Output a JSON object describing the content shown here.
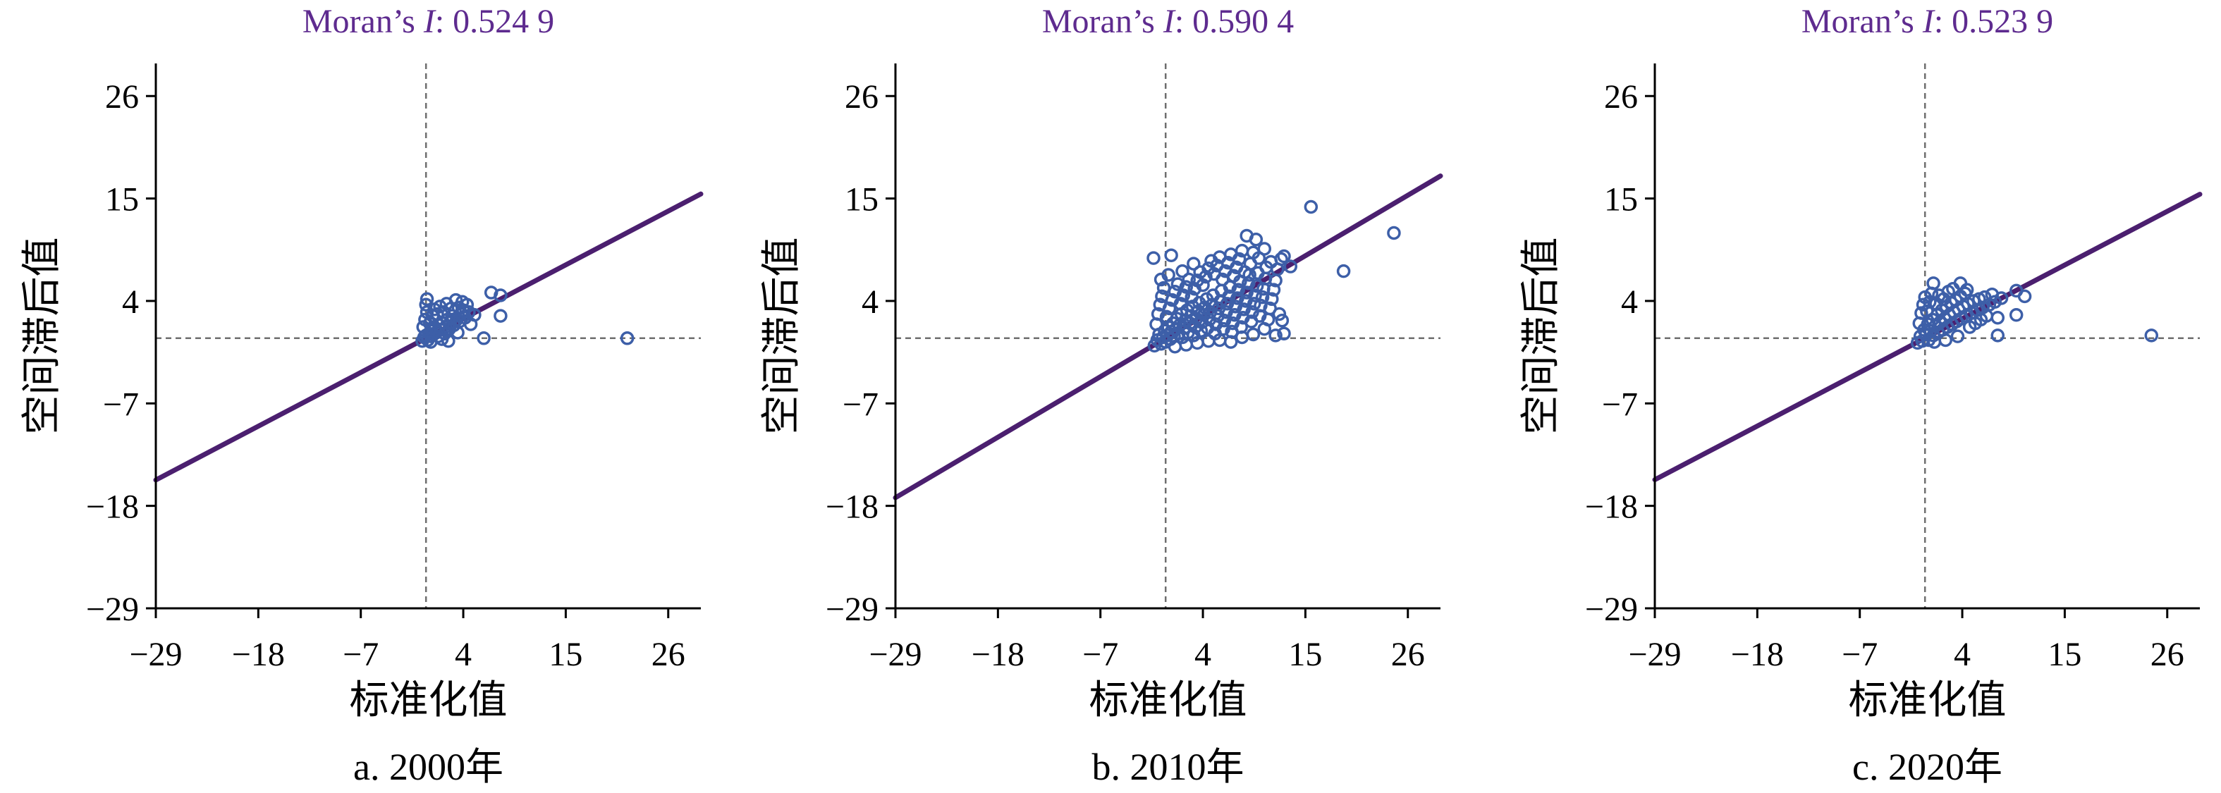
{
  "colors": {
    "title": "#5e2b8f",
    "regression_line": "#4b1f6f",
    "points": "#3d5fa8",
    "reference_lines": "#6e6e6e",
    "axes": "#000000",
    "background": "#ffffff"
  },
  "chart_data": [
    {
      "type": "scatter",
      "title_parts": [
        {
          "text": "Moran’s ",
          "italic": false
        },
        {
          "text": "I",
          "italic": true
        },
        {
          "text": ": 0.524 9",
          "italic": false
        }
      ],
      "caption": "a. 2000年",
      "xlabel": "标准化值",
      "ylabel": "空间滞后值",
      "xlim": [
        -29,
        29.5
      ],
      "ylim": [
        -29,
        29.5
      ],
      "xticks": [
        -29,
        -18,
        -7,
        4,
        15,
        26
      ],
      "xtick_labels": [
        "−29",
        "−18",
        "−7",
        "4",
        "15",
        "26"
      ],
      "yticks": [
        -29,
        -18,
        -7,
        4,
        15,
        26
      ],
      "ytick_labels": [
        "−29",
        "−18",
        "−7",
        "4",
        "15",
        "26"
      ],
      "grid": false,
      "reference_lines": {
        "x": 0,
        "y": 0
      },
      "regression_slope": 0.5249,
      "points": [
        [
          -0.4,
          -0.3
        ],
        [
          -0.2,
          0.1
        ],
        [
          0.0,
          0.3
        ],
        [
          0.2,
          -0.2
        ],
        [
          0.3,
          0.5
        ],
        [
          0.5,
          0.2
        ],
        [
          0.6,
          0.8
        ],
        [
          0.8,
          0.4
        ],
        [
          1.0,
          1.1
        ],
        [
          1.1,
          0.6
        ],
        [
          1.3,
          0.2
        ],
        [
          1.4,
          1.4
        ],
        [
          1.6,
          0.9
        ],
        [
          1.8,
          1.6
        ],
        [
          2.0,
          0.5
        ],
        [
          2.1,
          1.2
        ],
        [
          2.3,
          2.0
        ],
        [
          2.5,
          1.0
        ],
        [
          2.6,
          1.7
        ],
        [
          2.8,
          2.4
        ],
        [
          3.0,
          1.4
        ],
        [
          3.1,
          2.9
        ],
        [
          3.3,
          2.0
        ],
        [
          3.5,
          3.3
        ],
        [
          3.6,
          1.8
        ],
        [
          3.8,
          2.6
        ],
        [
          4.0,
          3.0
        ],
        [
          4.2,
          2.2
        ],
        [
          4.4,
          3.6
        ],
        [
          4.6,
          2.8
        ],
        [
          -0.3,
          1.2
        ],
        [
          -0.1,
          2.0
        ],
        [
          0.1,
          2.8
        ],
        [
          0.0,
          3.6
        ],
        [
          0.1,
          4.2
        ],
        [
          0.4,
          1.6
        ],
        [
          0.7,
          2.4
        ],
        [
          0.9,
          3.1
        ],
        [
          1.2,
          2.6
        ],
        [
          1.5,
          3.4
        ],
        [
          1.9,
          2.8
        ],
        [
          2.2,
          3.7
        ],
        [
          2.7,
          3.2
        ],
        [
          3.2,
          4.1
        ],
        [
          3.9,
          3.9
        ],
        [
          4.8,
          1.5
        ],
        [
          5.2,
          2.5
        ],
        [
          0.5,
          -0.4
        ],
        [
          1.7,
          -0.1
        ],
        [
          2.4,
          -0.3
        ],
        [
          3.4,
          0.6
        ],
        [
          6.2,
          0.0
        ],
        [
          7.0,
          4.9
        ],
        [
          8.0,
          4.6
        ],
        [
          8.0,
          2.4
        ],
        [
          21.6,
          0.0
        ]
      ]
    },
    {
      "type": "scatter",
      "title_parts": [
        {
          "text": "Moran’s ",
          "italic": false
        },
        {
          "text": "I",
          "italic": true
        },
        {
          "text": ": 0.590 4",
          "italic": false
        }
      ],
      "caption": "b. 2010年",
      "xlabel": "标准化值",
      "ylabel": "空间滞后值",
      "xlim": [
        -29,
        29.5
      ],
      "ylim": [
        -29,
        29.5
      ],
      "xticks": [
        -29,
        -18,
        -7,
        4,
        15,
        26
      ],
      "xtick_labels": [
        "−29",
        "−18",
        "−7",
        "4",
        "15",
        "26"
      ],
      "yticks": [
        -29,
        -18,
        -7,
        4,
        15,
        26
      ],
      "ytick_labels": [
        "−29",
        "−18",
        "−7",
        "4",
        "15",
        "26"
      ],
      "grid": false,
      "reference_lines": {
        "x": 0,
        "y": 0
      },
      "regression_slope": 0.5904,
      "points": [
        [
          -1.2,
          -0.8
        ],
        [
          -0.9,
          -0.2
        ],
        [
          -0.7,
          0.4
        ],
        [
          -0.5,
          -0.6
        ],
        [
          -0.3,
          0.1
        ],
        [
          -0.1,
          0.8
        ],
        [
          0.0,
          -0.4
        ],
        [
          0.2,
          0.3
        ],
        [
          0.3,
          1.2
        ],
        [
          0.5,
          -0.1
        ],
        [
          0.6,
          0.7
        ],
        [
          0.8,
          1.6
        ],
        [
          0.9,
          0.2
        ],
        [
          1.1,
          1.0
        ],
        [
          1.2,
          2.1
        ],
        [
          1.4,
          0.5
        ],
        [
          1.5,
          1.4
        ],
        [
          1.7,
          2.6
        ],
        [
          1.8,
          0.1
        ],
        [
          2.0,
          1.1
        ],
        [
          2.1,
          1.9
        ],
        [
          2.3,
          3.0
        ],
        [
          2.4,
          0.6
        ],
        [
          2.6,
          1.6
        ],
        [
          2.7,
          2.4
        ],
        [
          2.9,
          3.4
        ],
        [
          3.0,
          0.3
        ],
        [
          3.2,
          1.2
        ],
        [
          3.3,
          2.1
        ],
        [
          3.5,
          2.9
        ],
        [
          3.6,
          3.8
        ],
        [
          3.8,
          0.8
        ],
        [
          3.9,
          1.7
        ],
        [
          4.1,
          2.5
        ],
        [
          4.2,
          3.3
        ],
        [
          4.4,
          4.2
        ],
        [
          4.5,
          1.1
        ],
        [
          4.7,
          2.0
        ],
        [
          4.8,
          2.8
        ],
        [
          5.0,
          3.6
        ],
        [
          5.1,
          4.6
        ],
        [
          5.3,
          0.5
        ],
        [
          5.4,
          1.5
        ],
        [
          5.6,
          2.4
        ],
        [
          5.7,
          3.2
        ],
        [
          5.9,
          4.0
        ],
        [
          6.0,
          5.1
        ],
        [
          6.2,
          1.0
        ],
        [
          6.3,
          1.9
        ],
        [
          6.5,
          2.8
        ],
        [
          6.6,
          3.7
        ],
        [
          6.8,
          4.5
        ],
        [
          6.9,
          5.5
        ],
        [
          7.1,
          0.7
        ],
        [
          7.2,
          1.6
        ],
        [
          7.4,
          2.5
        ],
        [
          7.5,
          3.4
        ],
        [
          7.7,
          4.3
        ],
        [
          7.8,
          5.2
        ],
        [
          8.0,
          6.1
        ],
        [
          8.1,
          1.2
        ],
        [
          8.3,
          2.2
        ],
        [
          8.4,
          3.1
        ],
        [
          8.6,
          4.0
        ],
        [
          8.7,
          4.9
        ],
        [
          8.9,
          5.9
        ],
        [
          9.0,
          6.8
        ],
        [
          9.2,
          1.8
        ],
        [
          9.3,
          2.8
        ],
        [
          9.5,
          3.7
        ],
        [
          9.6,
          4.6
        ],
        [
          9.8,
          5.6
        ],
        [
          9.9,
          7.0
        ],
        [
          10.1,
          2.4
        ],
        [
          10.2,
          3.5
        ],
        [
          10.4,
          4.4
        ],
        [
          10.5,
          5.3
        ],
        [
          10.7,
          6.4
        ],
        [
          10.8,
          7.6
        ],
        [
          11.0,
          2.0
        ],
        [
          11.2,
          3.2
        ],
        [
          11.4,
          4.2
        ],
        [
          11.6,
          5.2
        ],
        [
          11.8,
          6.2
        ],
        [
          12.0,
          7.4
        ],
        [
          12.2,
          2.6
        ],
        [
          12.5,
          1.9
        ],
        [
          12.7,
          0.5
        ],
        [
          12.4,
          8.5
        ],
        [
          13.4,
          7.7
        ],
        [
          12.7,
          8.8
        ],
        [
          -1.0,
          1.5
        ],
        [
          -0.8,
          2.6
        ],
        [
          -0.6,
          3.6
        ],
        [
          -0.4,
          4.5
        ],
        [
          -0.2,
          5.4
        ],
        [
          -0.5,
          6.3
        ],
        [
          -1.3,
          8.6
        ],
        [
          0.6,
          8.9
        ],
        [
          0.1,
          2.3
        ],
        [
          0.4,
          3.2
        ],
        [
          0.7,
          4.1
        ],
        [
          1.0,
          5.0
        ],
        [
          1.3,
          5.8
        ],
        [
          0.3,
          6.8
        ],
        [
          1.6,
          3.7
        ],
        [
          1.9,
          4.6
        ],
        [
          2.2,
          5.5
        ],
        [
          2.5,
          6.3
        ],
        [
          1.8,
          7.2
        ],
        [
          2.8,
          4.4
        ],
        [
          3.1,
          5.3
        ],
        [
          3.4,
          6.2
        ],
        [
          3.7,
          7.1
        ],
        [
          3.0,
          8.0
        ],
        [
          4.0,
          5.7
        ],
        [
          4.3,
          6.6
        ],
        [
          4.6,
          7.5
        ],
        [
          4.9,
          8.3
        ],
        [
          5.2,
          6.9
        ],
        [
          5.5,
          7.8
        ],
        [
          5.8,
          8.7
        ],
        [
          6.1,
          6.3
        ],
        [
          6.4,
          7.2
        ],
        [
          6.7,
          8.1
        ],
        [
          7.0,
          9.0
        ],
        [
          7.3,
          6.7
        ],
        [
          7.6,
          7.6
        ],
        [
          7.9,
          8.5
        ],
        [
          8.2,
          9.4
        ],
        [
          8.5,
          7.1
        ],
        [
          8.7,
          11.0
        ],
        [
          9.7,
          10.6
        ],
        [
          9.1,
          8.0
        ],
        [
          9.4,
          9.2
        ],
        [
          10.0,
          8.6
        ],
        [
          10.6,
          9.6
        ],
        [
          11.3,
          8.2
        ],
        [
          1.0,
          -0.9
        ],
        [
          2.2,
          -0.7
        ],
        [
          3.4,
          -0.5
        ],
        [
          4.6,
          -0.3
        ],
        [
          5.8,
          -0.2
        ],
        [
          7.0,
          -0.4
        ],
        [
          8.2,
          0.1
        ],
        [
          9.4,
          0.4
        ],
        [
          10.6,
          1.0
        ],
        [
          11.8,
          0.3
        ],
        [
          15.6,
          14.1
        ],
        [
          19.1,
          7.2
        ],
        [
          24.5,
          11.3
        ]
      ]
    },
    {
      "type": "scatter",
      "title_parts": [
        {
          "text": "Moran’s ",
          "italic": false
        },
        {
          "text": "I",
          "italic": true
        },
        {
          "text": ": 0.523 9",
          "italic": false
        }
      ],
      "caption": "c. 2020年",
      "xlabel": "标准化值",
      "ylabel": "空间滞后值",
      "xlim": [
        -29,
        29.5
      ],
      "ylim": [
        -29,
        29.5
      ],
      "xticks": [
        -29,
        -18,
        -7,
        4,
        15,
        26
      ],
      "xtick_labels": [
        "−29",
        "−18",
        "−7",
        "4",
        "15",
        "26"
      ],
      "yticks": [
        -29,
        -18,
        -7,
        4,
        15,
        26
      ],
      "ytick_labels": [
        "−29",
        "−18",
        "−7",
        "4",
        "15",
        "26"
      ],
      "grid": false,
      "reference_lines": {
        "x": 0,
        "y": 0
      },
      "regression_slope": 0.5239,
      "points": [
        [
          -0.8,
          -0.5
        ],
        [
          -0.5,
          0.2
        ],
        [
          -0.3,
          -0.3
        ],
        [
          -0.1,
          0.9
        ],
        [
          0.1,
          0.4
        ],
        [
          0.3,
          1.5
        ],
        [
          0.4,
          -0.2
        ],
        [
          0.6,
          0.8
        ],
        [
          0.8,
          2.0
        ],
        [
          0.9,
          0.3
        ],
        [
          1.1,
          1.3
        ],
        [
          1.3,
          2.5
        ],
        [
          1.4,
          0.6
        ],
        [
          1.6,
          1.7
        ],
        [
          1.8,
          3.0
        ],
        [
          1.9,
          0.9
        ],
        [
          2.1,
          2.1
        ],
        [
          2.3,
          3.4
        ],
        [
          2.4,
          1.2
        ],
        [
          2.6,
          2.5
        ],
        [
          2.8,
          3.8
        ],
        [
          2.9,
          1.5
        ],
        [
          3.1,
          2.8
        ],
        [
          3.3,
          4.1
        ],
        [
          3.4,
          1.8
        ],
        [
          3.6,
          3.1
        ],
        [
          3.8,
          4.5
        ],
        [
          3.9,
          2.1
        ],
        [
          4.1,
          3.4
        ],
        [
          4.3,
          4.8
        ],
        [
          4.4,
          2.4
        ],
        [
          4.6,
          3.7
        ],
        [
          4.8,
          1.2
        ],
        [
          5.0,
          2.7
        ],
        [
          5.2,
          4.0
        ],
        [
          5.4,
          1.6
        ],
        [
          5.6,
          3.0
        ],
        [
          5.8,
          4.2
        ],
        [
          6.0,
          2.0
        ],
        [
          6.2,
          3.3
        ],
        [
          6.4,
          4.4
        ],
        [
          6.6,
          2.4
        ],
        [
          6.9,
          3.6
        ],
        [
          7.2,
          4.7
        ],
        [
          7.5,
          3.9
        ],
        [
          7.8,
          2.2
        ],
        [
          7.8,
          0.3
        ],
        [
          8.2,
          4.3
        ],
        [
          9.8,
          2.5
        ],
        [
          9.8,
          5.1
        ],
        [
          10.7,
          4.5
        ],
        [
          -0.6,
          1.6
        ],
        [
          -0.4,
          2.7
        ],
        [
          -0.2,
          3.6
        ],
        [
          0.0,
          4.4
        ],
        [
          0.9,
          5.9
        ],
        [
          0.2,
          2.9
        ],
        [
          0.5,
          3.9
        ],
        [
          0.7,
          4.8
        ],
        [
          1.2,
          3.7
        ],
        [
          1.5,
          4.6
        ],
        [
          2.0,
          4.2
        ],
        [
          2.5,
          5.0
        ],
        [
          3.8,
          5.9
        ],
        [
          3.0,
          5.3
        ],
        [
          4.5,
          5.2
        ],
        [
          1.0,
          -0.4
        ],
        [
          2.2,
          -0.2
        ],
        [
          3.5,
          0.2
        ],
        [
          24.3,
          0.3
        ]
      ]
    }
  ]
}
